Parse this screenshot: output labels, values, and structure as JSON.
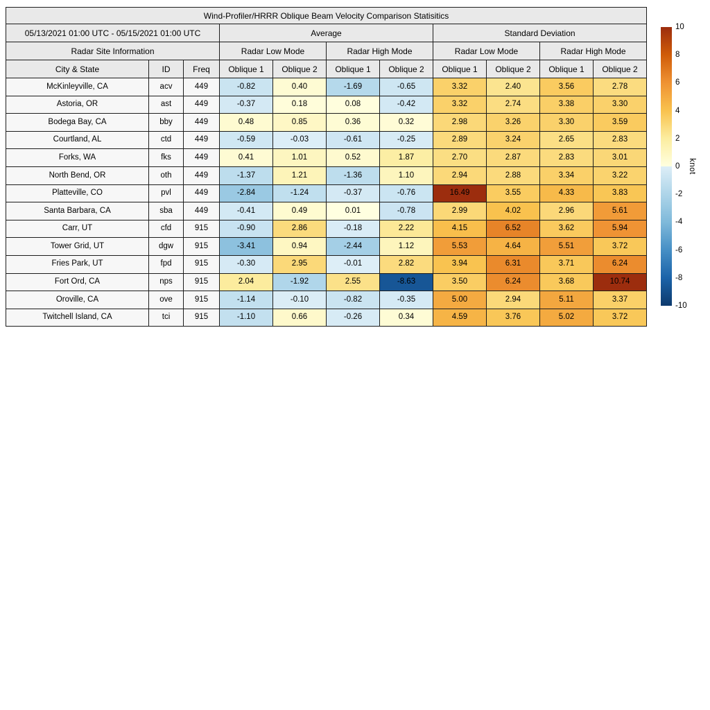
{
  "title": "Wind-Profiler/HRRR Oblique Beam Velocity Comparison Statisitics",
  "header": {
    "period": "05/13/2021 01:00 UTC - 05/15/2021 01:00 UTC",
    "average_label": "Average",
    "std_label": "Standard Deviation",
    "site_info_label": "Radar Site Information",
    "low_mode_label": "Radar Low Mode",
    "high_mode_label": "Radar High Mode",
    "city_label": "City & State",
    "id_label": "ID",
    "freq_label": "Freq",
    "oblique1_label": "Oblique 1",
    "oblique2_label": "Oblique 2"
  },
  "colorbar": {
    "label": "knot",
    "min": -10,
    "max": 10,
    "ticks": [
      10,
      8,
      6,
      4,
      2,
      0,
      -2,
      -4,
      -6,
      -8,
      -10
    ],
    "negative_stops": [
      [
        -10,
        "#0d3a6d"
      ],
      [
        -8,
        "#1b63a9"
      ],
      [
        -6,
        "#468fc5"
      ],
      [
        -4,
        "#7fb9da"
      ],
      [
        -2,
        "#aed5e9"
      ],
      [
        0,
        "#ddeef7"
      ]
    ],
    "positive_stops": [
      [
        0,
        "#ffffe0"
      ],
      [
        2,
        "#fcEDa0"
      ],
      [
        4,
        "#f9c24e"
      ],
      [
        6,
        "#ef9233"
      ],
      [
        8,
        "#d05c09"
      ],
      [
        10,
        "#9c2d0e"
      ]
    ]
  },
  "chart_data": {
    "type": "heatmap",
    "title": "Wind-Profiler/HRRR Oblique Beam Velocity Comparison Statisitics",
    "period": "05/13/2021 01:00 UTC - 05/15/2021 01:00 UTC",
    "value_unit": "knot",
    "value_range": [
      -10,
      10
    ],
    "columns": [
      "Average Radar Low Mode Oblique 1",
      "Average Radar Low Mode Oblique 2",
      "Average Radar High Mode Oblique 1",
      "Average Radar High Mode Oblique 2",
      "Standard Deviation Radar Low Mode Oblique 1",
      "Standard Deviation Radar Low Mode Oblique 2",
      "Standard Deviation Radar High Mode Oblique 1",
      "Standard Deviation Radar High Mode Oblique 2"
    ],
    "rows": [
      {
        "city": "McKinleyville, CA",
        "id": "acv",
        "freq": "449",
        "values": [
          "-0.82",
          "0.40",
          "-1.69",
          "-0.65",
          "3.32",
          "2.40",
          "3.56",
          "2.78"
        ]
      },
      {
        "city": "Astoria, OR",
        "id": "ast",
        "freq": "449",
        "values": [
          "-0.37",
          "0.18",
          "0.08",
          "-0.42",
          "3.32",
          "2.74",
          "3.38",
          "3.30"
        ]
      },
      {
        "city": "Bodega Bay, CA",
        "id": "bby",
        "freq": "449",
        "values": [
          "0.48",
          "0.85",
          "0.36",
          "0.32",
          "2.98",
          "3.26",
          "3.30",
          "3.59"
        ]
      },
      {
        "city": "Courtland, AL",
        "id": "ctd",
        "freq": "449",
        "values": [
          "-0.59",
          "-0.03",
          "-0.61",
          "-0.25",
          "2.89",
          "3.24",
          "2.65",
          "2.83"
        ]
      },
      {
        "city": "Forks, WA",
        "id": "fks",
        "freq": "449",
        "values": [
          "0.41",
          "1.01",
          "0.52",
          "1.87",
          "2.70",
          "2.87",
          "2.83",
          "3.01"
        ]
      },
      {
        "city": "North Bend, OR",
        "id": "oth",
        "freq": "449",
        "values": [
          "-1.37",
          "1.21",
          "-1.36",
          "1.10",
          "2.94",
          "2.88",
          "3.34",
          "3.22"
        ]
      },
      {
        "city": "Platteville, CO",
        "id": "pvl",
        "freq": "449",
        "values": [
          "-2.84",
          "-1.24",
          "-0.37",
          "-0.76",
          "16.49",
          "3.55",
          "4.33",
          "3.83"
        ]
      },
      {
        "city": "Santa Barbara, CA",
        "id": "sba",
        "freq": "449",
        "values": [
          "-0.41",
          "0.49",
          "0.01",
          "-0.78",
          "2.99",
          "4.02",
          "2.96",
          "5.61"
        ]
      },
      {
        "city": "Carr, UT",
        "id": "cfd",
        "freq": "915",
        "values": [
          "-0.90",
          "2.86",
          "-0.18",
          "2.22",
          "4.15",
          "6.52",
          "3.62",
          "5.94"
        ]
      },
      {
        "city": "Tower Grid, UT",
        "id": "dgw",
        "freq": "915",
        "values": [
          "-3.41",
          "0.94",
          "-2.44",
          "1.12",
          "5.53",
          "4.64",
          "5.51",
          "3.72"
        ]
      },
      {
        "city": "Fries Park, UT",
        "id": "fpd",
        "freq": "915",
        "values": [
          "-0.30",
          "2.95",
          "-0.01",
          "2.82",
          "3.94",
          "6.31",
          "3.71",
          "6.24"
        ]
      },
      {
        "city": "Fort Ord, CA",
        "id": "nps",
        "freq": "915",
        "values": [
          "2.04",
          "-1.92",
          "2.55",
          "-8.63",
          "3.50",
          "6.24",
          "3.68",
          "10.74"
        ]
      },
      {
        "city": "Oroville, CA",
        "id": "ove",
        "freq": "915",
        "values": [
          "-1.14",
          "-0.10",
          "-0.82",
          "-0.35",
          "5.00",
          "2.94",
          "5.11",
          "3.37"
        ]
      },
      {
        "city": "Twitchell Island, CA",
        "id": "tci",
        "freq": "915",
        "values": [
          "-1.10",
          "0.66",
          "-0.26",
          "0.34",
          "4.59",
          "3.76",
          "5.02",
          "3.72"
        ]
      }
    ]
  }
}
